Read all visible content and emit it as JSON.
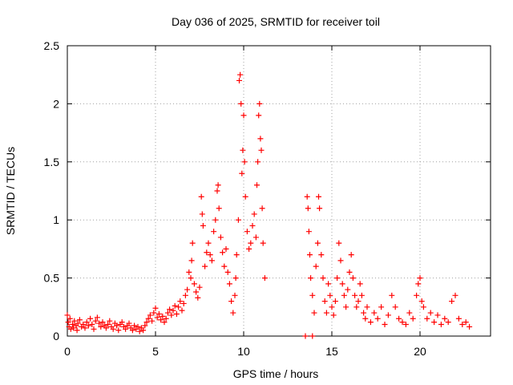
{
  "chart_data": {
    "type": "scatter",
    "title": "Day 036 of 2025, SRMTID for receiver toil",
    "xlabel": "GPS time / hours",
    "ylabel": "SRMTID / TECUs",
    "xlim": [
      0,
      24
    ],
    "ylim": [
      0,
      2.5
    ],
    "x_ticks": [
      0,
      5,
      10,
      15,
      20
    ],
    "y_ticks": [
      0,
      0.5,
      1,
      1.5,
      2,
      2.5
    ],
    "x_tick_labels": [
      "0",
      "5",
      "10",
      "15",
      "20"
    ],
    "y_tick_labels": [
      "0",
      "0.5",
      "1",
      "1.5",
      "2",
      "2.5"
    ],
    "grid": true,
    "marker": "+",
    "marker_color": "#ff0000",
    "series": [
      {
        "name": "SRMTID",
        "points": [
          [
            0.0,
            0.18
          ],
          [
            0.05,
            0.12
          ],
          [
            0.1,
            0.08
          ],
          [
            0.15,
            0.15
          ],
          [
            0.2,
            0.06
          ],
          [
            0.3,
            0.1
          ],
          [
            0.35,
            0.07
          ],
          [
            0.4,
            0.13
          ],
          [
            0.5,
            0.09
          ],
          [
            0.55,
            0.05
          ],
          [
            0.6,
            0.11
          ],
          [
            0.7,
            0.14
          ],
          [
            0.8,
            0.08
          ],
          [
            0.9,
            0.1
          ],
          [
            1.0,
            0.07
          ],
          [
            1.1,
            0.12
          ],
          [
            1.2,
            0.09
          ],
          [
            1.3,
            0.15
          ],
          [
            1.4,
            0.1
          ],
          [
            1.5,
            0.06
          ],
          [
            1.6,
            0.13
          ],
          [
            1.7,
            0.16
          ],
          [
            1.8,
            0.11
          ],
          [
            1.9,
            0.08
          ],
          [
            2.0,
            0.12
          ],
          [
            2.1,
            0.09
          ],
          [
            2.2,
            0.07
          ],
          [
            2.3,
            0.1
          ],
          [
            2.4,
            0.13
          ],
          [
            2.5,
            0.08
          ],
          [
            2.6,
            0.06
          ],
          [
            2.7,
            0.11
          ],
          [
            2.8,
            0.09
          ],
          [
            2.9,
            0.05
          ],
          [
            3.0,
            0.1
          ],
          [
            3.1,
            0.12
          ],
          [
            3.2,
            0.08
          ],
          [
            3.3,
            0.06
          ],
          [
            3.4,
            0.09
          ],
          [
            3.5,
            0.11
          ],
          [
            3.6,
            0.07
          ],
          [
            3.7,
            0.05
          ],
          [
            3.8,
            0.09
          ],
          [
            3.9,
            0.06
          ],
          [
            4.0,
            0.08
          ],
          [
            4.1,
            0.04
          ],
          [
            4.2,
            0.07
          ],
          [
            4.3,
            0.05
          ],
          [
            4.4,
            0.09
          ],
          [
            4.5,
            0.12
          ],
          [
            4.6,
            0.15
          ],
          [
            4.7,
            0.18
          ],
          [
            4.8,
            0.13
          ],
          [
            4.9,
            0.2
          ],
          [
            5.0,
            0.24
          ],
          [
            5.1,
            0.16
          ],
          [
            5.2,
            0.19
          ],
          [
            5.3,
            0.14
          ],
          [
            5.4,
            0.17
          ],
          [
            5.5,
            0.12
          ],
          [
            5.6,
            0.15
          ],
          [
            5.7,
            0.2
          ],
          [
            5.8,
            0.23
          ],
          [
            5.9,
            0.18
          ],
          [
            6.0,
            0.22
          ],
          [
            6.1,
            0.26
          ],
          [
            6.2,
            0.19
          ],
          [
            6.3,
            0.25
          ],
          [
            6.4,
            0.3
          ],
          [
            6.5,
            0.22
          ],
          [
            6.6,
            0.28
          ],
          [
            6.7,
            0.35
          ],
          [
            6.8,
            0.4
          ],
          [
            6.9,
            0.55
          ],
          [
            7.0,
            0.5
          ],
          [
            7.05,
            0.65
          ],
          [
            7.1,
            0.8
          ],
          [
            7.2,
            0.45
          ],
          [
            7.3,
            0.38
          ],
          [
            7.4,
            0.33
          ],
          [
            7.5,
            0.42
          ],
          [
            7.6,
            1.2
          ],
          [
            7.65,
            1.05
          ],
          [
            7.7,
            0.95
          ],
          [
            7.8,
            0.6
          ],
          [
            7.9,
            0.72
          ],
          [
            8.0,
            0.8
          ],
          [
            8.1,
            0.7
          ],
          [
            8.2,
            0.65
          ],
          [
            8.3,
            0.9
          ],
          [
            8.4,
            1.0
          ],
          [
            8.5,
            1.25
          ],
          [
            8.55,
            1.3
          ],
          [
            8.6,
            1.1
          ],
          [
            8.7,
            0.85
          ],
          [
            8.8,
            0.72
          ],
          [
            8.9,
            0.6
          ],
          [
            9.0,
            0.75
          ],
          [
            9.1,
            0.55
          ],
          [
            9.2,
            0.45
          ],
          [
            9.3,
            0.3
          ],
          [
            9.4,
            0.2
          ],
          [
            9.5,
            0.35
          ],
          [
            9.55,
            0.5
          ],
          [
            9.6,
            0.7
          ],
          [
            9.7,
            1.0
          ],
          [
            9.75,
            2.2
          ],
          [
            9.8,
            2.25
          ],
          [
            9.85,
            2.0
          ],
          [
            9.9,
            1.4
          ],
          [
            9.95,
            1.6
          ],
          [
            10.0,
            1.9
          ],
          [
            10.05,
            1.5
          ],
          [
            10.1,
            1.2
          ],
          [
            10.2,
            0.9
          ],
          [
            10.3,
            0.75
          ],
          [
            10.4,
            0.8
          ],
          [
            10.5,
            0.95
          ],
          [
            10.6,
            1.05
          ],
          [
            10.7,
            0.85
          ],
          [
            10.75,
            1.3
          ],
          [
            10.8,
            1.5
          ],
          [
            10.85,
            1.9
          ],
          [
            10.9,
            2.0
          ],
          [
            10.95,
            1.7
          ],
          [
            11.0,
            1.6
          ],
          [
            11.05,
            1.1
          ],
          [
            11.1,
            0.8
          ],
          [
            11.2,
            0.5
          ],
          [
            13.5,
            0.0
          ],
          [
            13.9,
            0.0
          ],
          [
            13.6,
            1.2
          ],
          [
            13.65,
            1.1
          ],
          [
            13.7,
            0.9
          ],
          [
            13.75,
            0.7
          ],
          [
            13.8,
            0.5
          ],
          [
            13.9,
            0.35
          ],
          [
            14.0,
            0.2
          ],
          [
            14.1,
            0.6
          ],
          [
            14.2,
            0.8
          ],
          [
            14.25,
            1.2
          ],
          [
            14.3,
            1.1
          ],
          [
            14.4,
            0.7
          ],
          [
            14.5,
            0.5
          ],
          [
            14.6,
            0.3
          ],
          [
            14.7,
            0.2
          ],
          [
            14.8,
            0.45
          ],
          [
            14.9,
            0.35
          ],
          [
            15.0,
            0.25
          ],
          [
            15.1,
            0.18
          ],
          [
            15.2,
            0.3
          ],
          [
            15.3,
            0.5
          ],
          [
            15.4,
            0.8
          ],
          [
            15.5,
            0.65
          ],
          [
            15.6,
            0.45
          ],
          [
            15.7,
            0.35
          ],
          [
            15.8,
            0.25
          ],
          [
            15.9,
            0.4
          ],
          [
            16.0,
            0.55
          ],
          [
            16.1,
            0.7
          ],
          [
            16.2,
            0.5
          ],
          [
            16.3,
            0.35
          ],
          [
            16.4,
            0.25
          ],
          [
            16.5,
            0.3
          ],
          [
            16.6,
            0.45
          ],
          [
            16.7,
            0.35
          ],
          [
            16.8,
            0.2
          ],
          [
            16.9,
            0.15
          ],
          [
            17.0,
            0.25
          ],
          [
            17.2,
            0.12
          ],
          [
            17.4,
            0.2
          ],
          [
            17.6,
            0.15
          ],
          [
            17.8,
            0.25
          ],
          [
            18.0,
            0.1
          ],
          [
            18.2,
            0.18
          ],
          [
            18.4,
            0.35
          ],
          [
            18.6,
            0.25
          ],
          [
            18.8,
            0.15
          ],
          [
            19.0,
            0.12
          ],
          [
            19.2,
            0.1
          ],
          [
            19.4,
            0.2
          ],
          [
            19.6,
            0.15
          ],
          [
            19.8,
            0.35
          ],
          [
            19.9,
            0.45
          ],
          [
            20.0,
            0.5
          ],
          [
            20.1,
            0.3
          ],
          [
            20.2,
            0.25
          ],
          [
            20.4,
            0.15
          ],
          [
            20.6,
            0.2
          ],
          [
            20.8,
            0.12
          ],
          [
            21.0,
            0.18
          ],
          [
            21.2,
            0.1
          ],
          [
            21.4,
            0.15
          ],
          [
            21.6,
            0.12
          ],
          [
            21.8,
            0.3
          ],
          [
            22.0,
            0.35
          ],
          [
            22.2,
            0.15
          ],
          [
            22.4,
            0.1
          ],
          [
            22.6,
            0.12
          ],
          [
            22.8,
            0.08
          ]
        ]
      }
    ]
  }
}
